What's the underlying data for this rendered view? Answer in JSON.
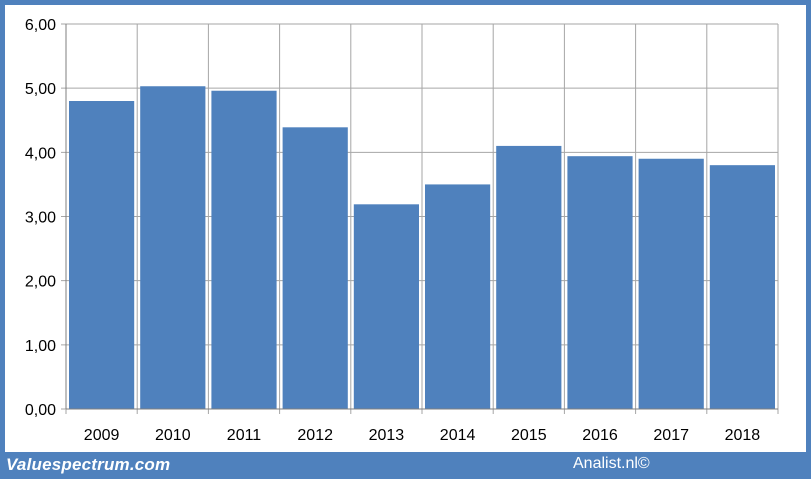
{
  "chart_data": {
    "type": "bar",
    "categories": [
      "2009",
      "2010",
      "2011",
      "2012",
      "2013",
      "2014",
      "2015",
      "2016",
      "2017",
      "2018"
    ],
    "values": [
      4.8,
      5.03,
      4.96,
      4.39,
      3.19,
      3.5,
      4.1,
      3.94,
      3.9,
      3.8
    ],
    "y_ticks": [
      "0,00",
      "1,00",
      "2,00",
      "3,00",
      "4,00",
      "5,00",
      "6,00"
    ],
    "ylim": [
      0,
      6
    ],
    "grid": true,
    "bar_color": "#4f81bd",
    "grid_color": "#a6a6a6"
  },
  "footer": {
    "left_text": "Valuespectrum.com",
    "right_text": "Analist.nl©",
    "color": "#4f81bd"
  }
}
